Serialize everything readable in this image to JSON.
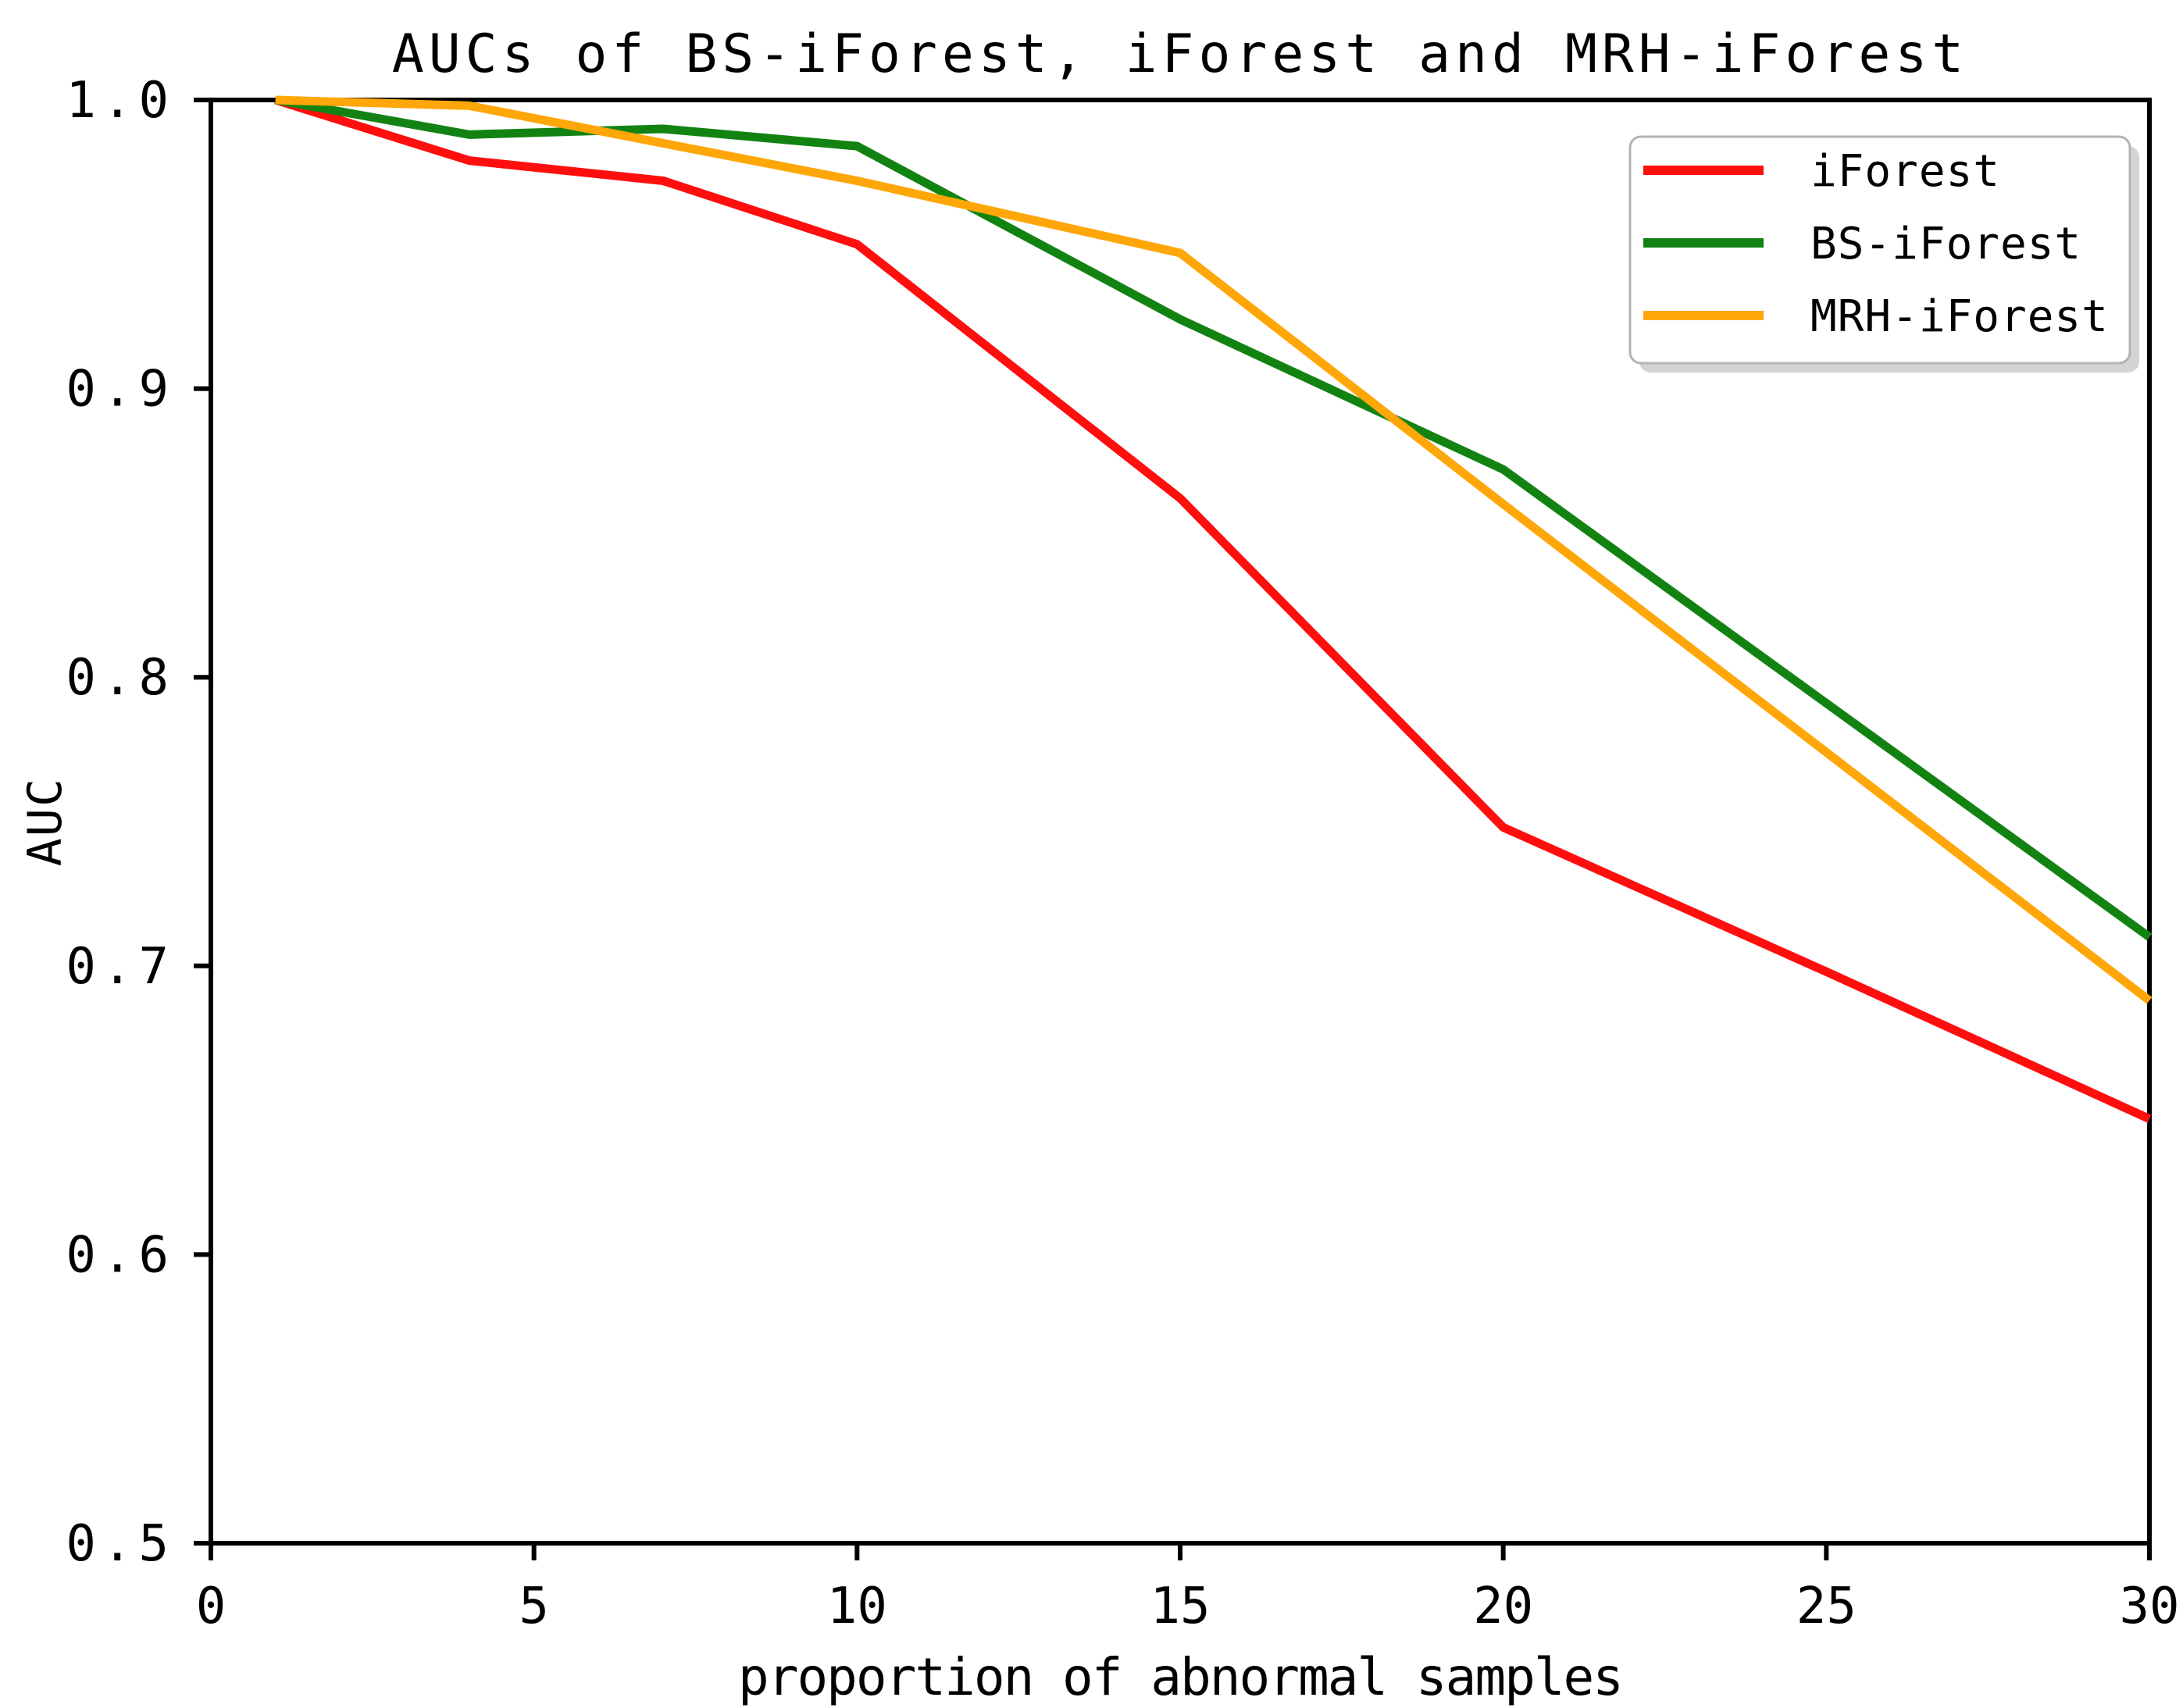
{
  "figure": {
    "background_color": "#ffffff",
    "axis_color": "#000000"
  },
  "chart_data": {
    "type": "line",
    "title": "AUCs of BS-iForest, iForest and MRH-iForest",
    "xlabel": "proportion of abnormal samples",
    "ylabel": "AUC",
    "xlim": [
      0,
      30
    ],
    "ylim": [
      0.5,
      1.0
    ],
    "grid": false,
    "legend_position": "upper right",
    "x_ticks": [
      {
        "v": 0,
        "label": "0"
      },
      {
        "v": 5,
        "label": "5"
      },
      {
        "v": 10,
        "label": "10"
      },
      {
        "v": 15,
        "label": "15"
      },
      {
        "v": 20,
        "label": "20"
      },
      {
        "v": 25,
        "label": "25"
      },
      {
        "v": 30,
        "label": "30"
      }
    ],
    "y_ticks": [
      {
        "v": 1.0,
        "label": "1.0"
      },
      {
        "v": 0.9,
        "label": "0.9"
      },
      {
        "v": 0.8,
        "label": "0.8"
      },
      {
        "v": 0.7,
        "label": "0.7"
      },
      {
        "v": 0.6,
        "label": "0.6"
      },
      {
        "v": 0.5,
        "label": "0.5"
      }
    ],
    "x": [
      1,
      4,
      7,
      10,
      15,
      20,
      25,
      30
    ],
    "series": [
      {
        "name": "iForest",
        "color": "#ff0e0e",
        "values": [
          1.0,
          0.979,
          0.972,
          0.95,
          0.862,
          0.748,
          0.698,
          0.647
        ]
      },
      {
        "name": "BS-iForest",
        "color": "#128312",
        "values": [
          1.0,
          0.988,
          0.99,
          0.984,
          0.924,
          0.872,
          0.791,
          0.71
        ]
      },
      {
        "name": "MRH-iForest",
        "color": "#ffa608",
        "values": [
          1.0,
          0.998,
          0.985,
          0.972,
          0.947,
          0.86,
          0.774,
          0.688
        ]
      }
    ],
    "legend_border_color": "#b3b3b3",
    "legend_shadow_color": "#a9a9a9"
  }
}
